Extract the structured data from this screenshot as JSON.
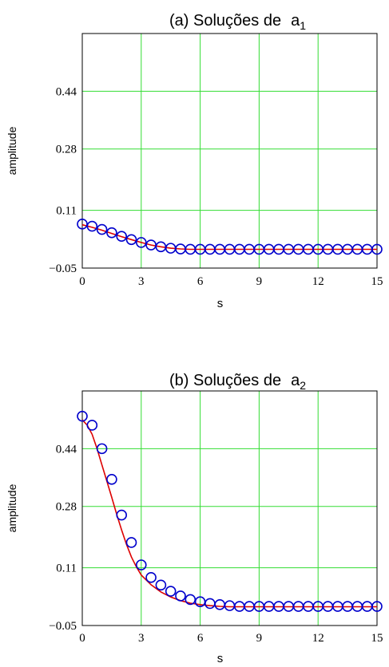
{
  "colors": {
    "grid": "#33dd33",
    "frame": "#000000",
    "curve": "#dd0000",
    "markers": "#0000cc",
    "background": "#ffffff"
  },
  "chart_data": [
    {
      "type": "line",
      "title_main": "(a) Soluções de",
      "title_var": "a",
      "title_sub": "1",
      "xlabel": "s",
      "ylabel": "amplitude",
      "xlim": [
        0,
        15
      ],
      "ylim": [
        -0.05,
        0.6
      ],
      "xticks": [
        0,
        3,
        6,
        9,
        12,
        15
      ],
      "xtick_labels": [
        "0",
        "3",
        "6",
        "9",
        "12",
        "15"
      ],
      "yticks": [
        -0.05,
        0.11,
        0.28,
        0.44
      ],
      "ytick_labels": [
        "−0.05",
        "0.11",
        "0.28",
        "0.44"
      ],
      "grid": true,
      "series": [
        {
          "style": "line",
          "x": [
            0,
            0.5,
            1,
            1.5,
            2,
            2.5,
            3,
            3.5,
            4,
            4.5,
            5,
            5.5,
            6,
            6.5,
            7,
            7.5,
            8,
            8.5,
            9,
            9.5,
            10,
            10.5,
            11,
            11.5,
            12,
            12.5,
            13,
            13.5,
            14,
            14.5,
            15
          ],
          "y": [
            0.07,
            0.063,
            0.055,
            0.046,
            0.037,
            0.029,
            0.021,
            0.014,
            0.009,
            0.005,
            0.003,
            0.002,
            0.002,
            0.002,
            0.002,
            0.002,
            0.002,
            0.002,
            0.002,
            0.002,
            0.002,
            0.002,
            0.002,
            0.002,
            0.002,
            0.002,
            0.002,
            0.002,
            0.002,
            0.002,
            0.002
          ]
        },
        {
          "style": "markers",
          "x": [
            0,
            0.5,
            1,
            1.5,
            2,
            2.5,
            3,
            3.5,
            4,
            4.5,
            5,
            5.5,
            6,
            6.5,
            7,
            7.5,
            8,
            8.5,
            9,
            9.5,
            10,
            10.5,
            11,
            11.5,
            12,
            12.5,
            13,
            13.5,
            14,
            14.5,
            15
          ],
          "y": [
            0.072,
            0.066,
            0.057,
            0.048,
            0.038,
            0.029,
            0.021,
            0.014,
            0.009,
            0.005,
            0.003,
            0.002,
            0.002,
            0.002,
            0.002,
            0.002,
            0.002,
            0.002,
            0.002,
            0.002,
            0.002,
            0.002,
            0.002,
            0.002,
            0.002,
            0.002,
            0.002,
            0.002,
            0.002,
            0.002,
            0.002
          ]
        }
      ]
    },
    {
      "type": "line",
      "title_main": "(b) Soluções de",
      "title_var": "a",
      "title_sub": "2",
      "xlabel": "s",
      "ylabel": "amplitude",
      "xlim": [
        0,
        15
      ],
      "ylim": [
        -0.05,
        0.6
      ],
      "xticks": [
        0,
        3,
        6,
        9,
        12,
        15
      ],
      "xtick_labels": [
        "0",
        "3",
        "6",
        "9",
        "12",
        "15"
      ],
      "yticks": [
        -0.05,
        0.11,
        0.28,
        0.44
      ],
      "ytick_labels": [
        "−0.05",
        "0.11",
        "0.28",
        "0.44"
      ],
      "grid": true,
      "series": [
        {
          "style": "line",
          "x": [
            0,
            0.25,
            0.5,
            0.75,
            1,
            1.25,
            1.5,
            1.75,
            2,
            2.25,
            2.5,
            2.75,
            3,
            3.5,
            4,
            4.5,
            5,
            5.5,
            6,
            6.5,
            7,
            7.5,
            8,
            8.5,
            9,
            9.5,
            10,
            10.5,
            11,
            11.5,
            12,
            12.5,
            13,
            13.5,
            14,
            14.5,
            15
          ],
          "y": [
            0.52,
            0.505,
            0.48,
            0.44,
            0.395,
            0.35,
            0.305,
            0.258,
            0.215,
            0.175,
            0.14,
            0.113,
            0.09,
            0.063,
            0.043,
            0.029,
            0.019,
            0.012,
            0.008,
            0.005,
            0.003,
            0.002,
            0.002,
            0.002,
            0.002,
            0.002,
            0.002,
            0.002,
            0.002,
            0.002,
            0.002,
            0.002,
            0.002,
            0.002,
            0.002,
            0.002,
            0.002
          ]
        },
        {
          "style": "markers",
          "x": [
            0,
            0.5,
            1,
            1.5,
            2,
            2.5,
            3,
            3.5,
            4,
            4.5,
            5,
            5.5,
            6,
            6.5,
            7,
            7.5,
            8,
            8.5,
            9,
            9.5,
            10,
            10.5,
            11,
            11.5,
            12,
            12.5,
            13,
            13.5,
            14,
            14.5,
            15
          ],
          "y": [
            0.53,
            0.505,
            0.44,
            0.355,
            0.256,
            0.18,
            0.118,
            0.083,
            0.062,
            0.045,
            0.032,
            0.022,
            0.016,
            0.011,
            0.008,
            0.005,
            0.003,
            0.003,
            0.003,
            0.003,
            0.003,
            0.003,
            0.003,
            0.003,
            0.003,
            0.003,
            0.003,
            0.003,
            0.003,
            0.003,
            0.003
          ]
        }
      ]
    }
  ]
}
